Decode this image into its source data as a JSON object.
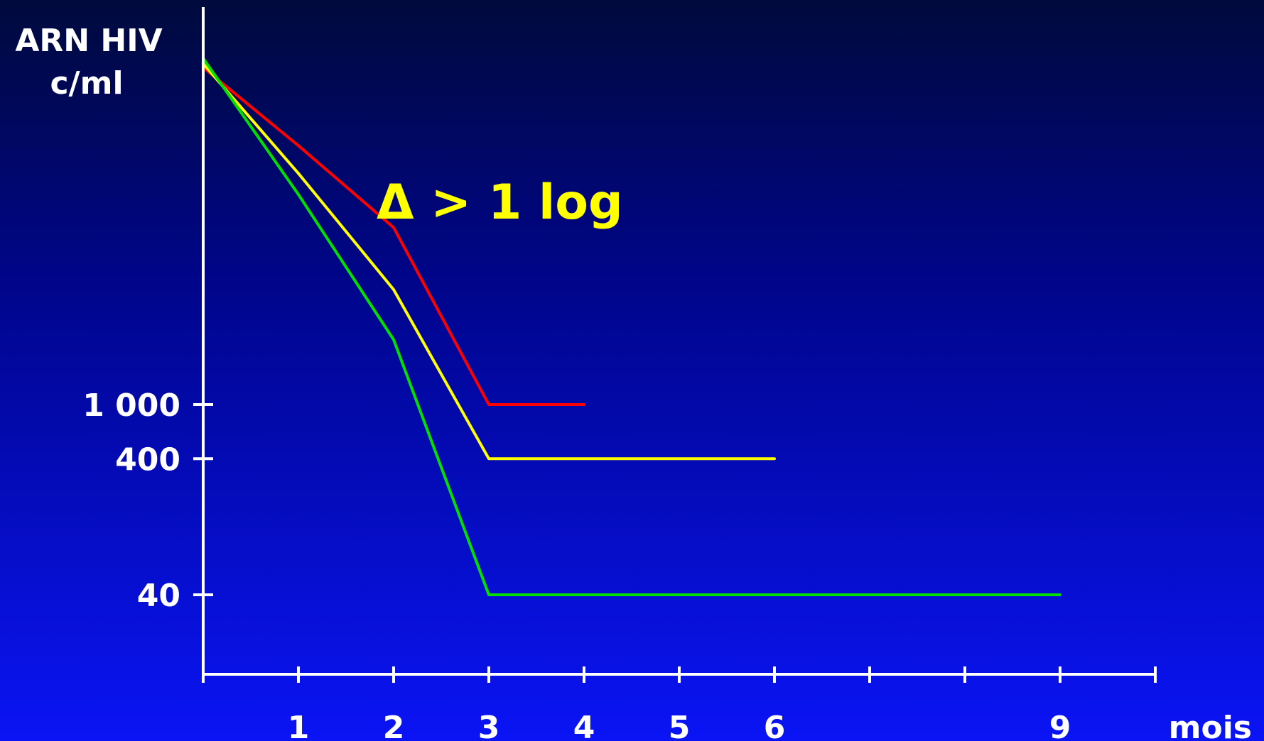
{
  "chart_data": {
    "type": "line",
    "ylabel_line1": "ARN HIV",
    "ylabel_line2": "c/ml",
    "xlabel": "mois",
    "annotation": "Δ > 1 log",
    "xlim": [
      0,
      10
    ],
    "x_ticks": [
      0,
      1,
      2,
      3,
      4,
      5,
      6,
      7,
      8,
      9,
      10
    ],
    "x_tick_labels": [
      {
        "x": 1,
        "label": "1"
      },
      {
        "x": 2,
        "label": "2"
      },
      {
        "x": 3,
        "label": "3"
      },
      {
        "x": 4,
        "label": "4"
      },
      {
        "x": 5,
        "label": "5"
      },
      {
        "x": 6,
        "label": "6"
      },
      {
        "x": 9,
        "label": "9"
      }
    ],
    "y_scale": "log",
    "ylim": [
      10,
      10000000
    ],
    "y_ticks": [
      {
        "value": 1000,
        "label": "1 000"
      },
      {
        "value": 400,
        "label": "400"
      },
      {
        "value": 40,
        "label": "40"
      }
    ],
    "series": [
      {
        "color": "#ff0000",
        "points": [
          [
            0,
            300000
          ],
          [
            1,
            80000
          ],
          [
            2,
            20000
          ],
          [
            3,
            1000
          ],
          [
            4,
            1000
          ]
        ]
      },
      {
        "color": "#ffff00",
        "points": [
          [
            0,
            320000
          ],
          [
            1,
            50000
          ],
          [
            2,
            7000
          ],
          [
            3,
            400
          ],
          [
            4,
            400
          ],
          [
            5,
            400
          ],
          [
            6,
            400
          ]
        ]
      },
      {
        "color": "#00e000",
        "points": [
          [
            0,
            350000
          ],
          [
            1,
            35000
          ],
          [
            2,
            3000
          ],
          [
            3,
            40
          ],
          [
            4,
            40
          ],
          [
            5,
            40
          ],
          [
            6,
            40
          ],
          [
            7,
            40
          ],
          [
            8,
            40
          ],
          [
            9,
            40
          ]
        ]
      }
    ]
  }
}
